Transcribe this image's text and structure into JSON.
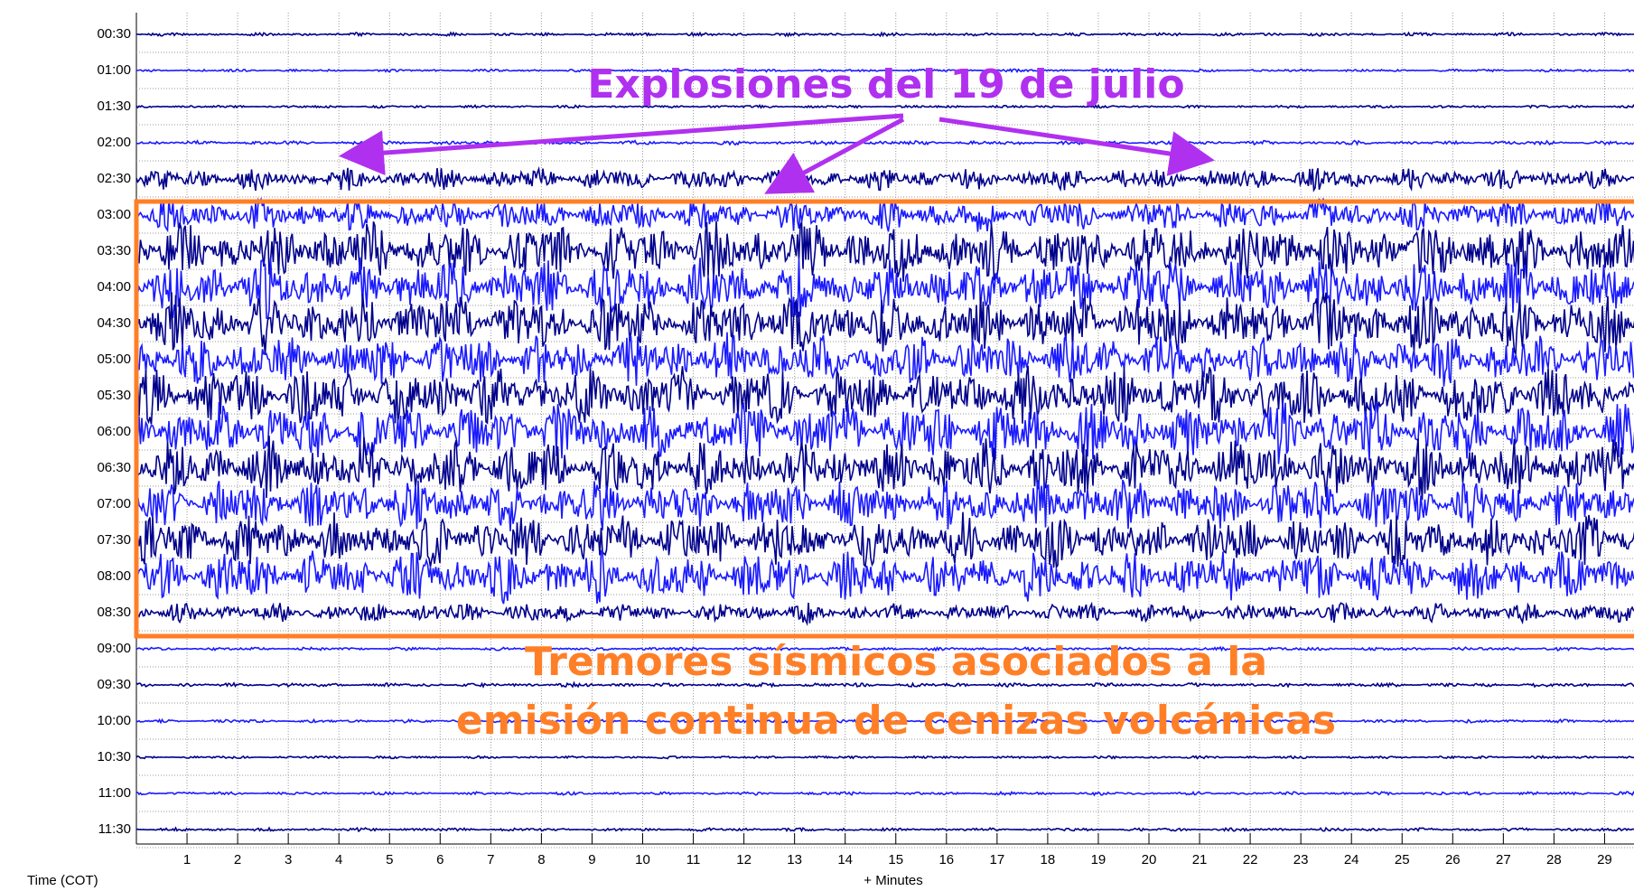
{
  "chart_data": {
    "type": "helicorder",
    "categories": [
      "00:30",
      "01:00",
      "01:30",
      "02:00",
      "02:30",
      "03:00",
      "03:30",
      "04:00",
      "04:30",
      "05:00",
      "05:30",
      "06:00",
      "06:30",
      "07:00",
      "07:30",
      "08:00",
      "08:30",
      "09:00",
      "09:30",
      "10:00",
      "10:30",
      "11:00",
      "11:30"
    ],
    "values": [
      0.05,
      0.04,
      0.04,
      0.06,
      0.35,
      0.5,
      0.9,
      0.9,
      0.9,
      0.8,
      0.9,
      0.9,
      0.9,
      0.8,
      0.8,
      0.8,
      0.3,
      0.05,
      0.06,
      0.05,
      0.04,
      0.05,
      0.05
    ],
    "colors": [
      "#00008b",
      "#1a1aff"
    ],
    "xlim": [
      0,
      30
    ],
    "xticks": [
      1,
      2,
      3,
      4,
      5,
      6,
      7,
      8,
      9,
      10,
      11,
      12,
      13,
      14,
      15,
      16,
      17,
      18,
      19,
      20,
      21,
      22,
      23,
      24,
      25,
      26,
      27,
      28,
      29
    ],
    "xlabel": "+ Minutes",
    "ylabel": "Time (COT)",
    "grid": true,
    "annotations": [
      "Explosiones del 19 de julio",
      "Tremores sísmicos asociados a la",
      "emisión continua de cenizas volcánicas"
    ]
  }
}
